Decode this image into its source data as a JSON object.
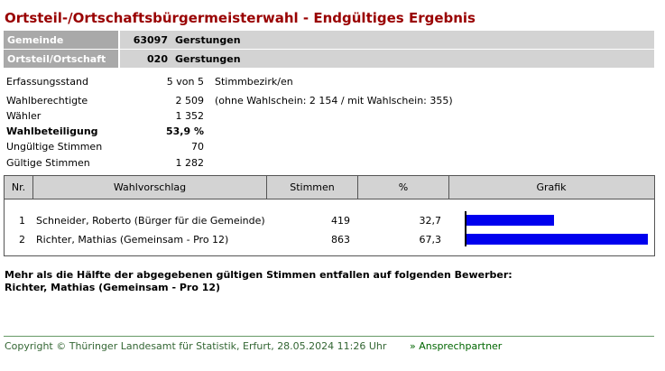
{
  "header": {
    "title": "Ortsteil-/Ortschaftsbürgermeisterwahl - Endgültiges Ergebnis"
  },
  "info": [
    {
      "label": "Gemeinde",
      "code": "63097",
      "name": "Gerstungen"
    },
    {
      "label": "Ortsteil/Ortschaft",
      "code": "020",
      "name": "Gerstungen"
    }
  ],
  "stats": [
    {
      "label": "Erfassungsstand",
      "value": "5 von 5",
      "note": "Stimmbezirk/en"
    },
    {
      "label": "Wahlberechtigte",
      "value": "2 509",
      "note": "(ohne Wahlschein: 2 154 / mit Wahlschein: 355)"
    },
    {
      "label": "Wähler",
      "value": "1 352"
    },
    {
      "label": "Wahlbeteiligung",
      "value": "53,9 %"
    },
    {
      "label": "Ungültige Stimmen",
      "value": "70"
    },
    {
      "label": "Gültige Stimmen",
      "value": "1 282"
    }
  ],
  "table": {
    "columns": [
      "Nr.",
      "Wahlvorschlag",
      "Stimmen",
      "%",
      "Grafik"
    ],
    "rows": [
      {
        "nr": "1",
        "name": "Schneider, Roberto (Bürger für die Gemeinde)",
        "votes": "419",
        "percent": {
          "value": 32.7,
          "label": "32,7"
        }
      },
      {
        "nr": "2",
        "name": "Richter, Mathias (Gemeinsam - Pro 12)",
        "votes": "863",
        "percent": {
          "value": 67.3,
          "label": "67,3"
        }
      }
    ]
  },
  "result": [
    "Mehr als die Hälfte der abgegebenen gültigen Stimmen entfallen auf folgenden Bewerber:",
    "Richter, Mathias (Gemeinsam - Pro 12)"
  ],
  "footer": {
    "copyright": "Copyright © Thüringer Landesamt für Statistik, Erfurt, 28.05.2024 11:26 Uhr",
    "link": "» Ansprechpartner"
  }
}
